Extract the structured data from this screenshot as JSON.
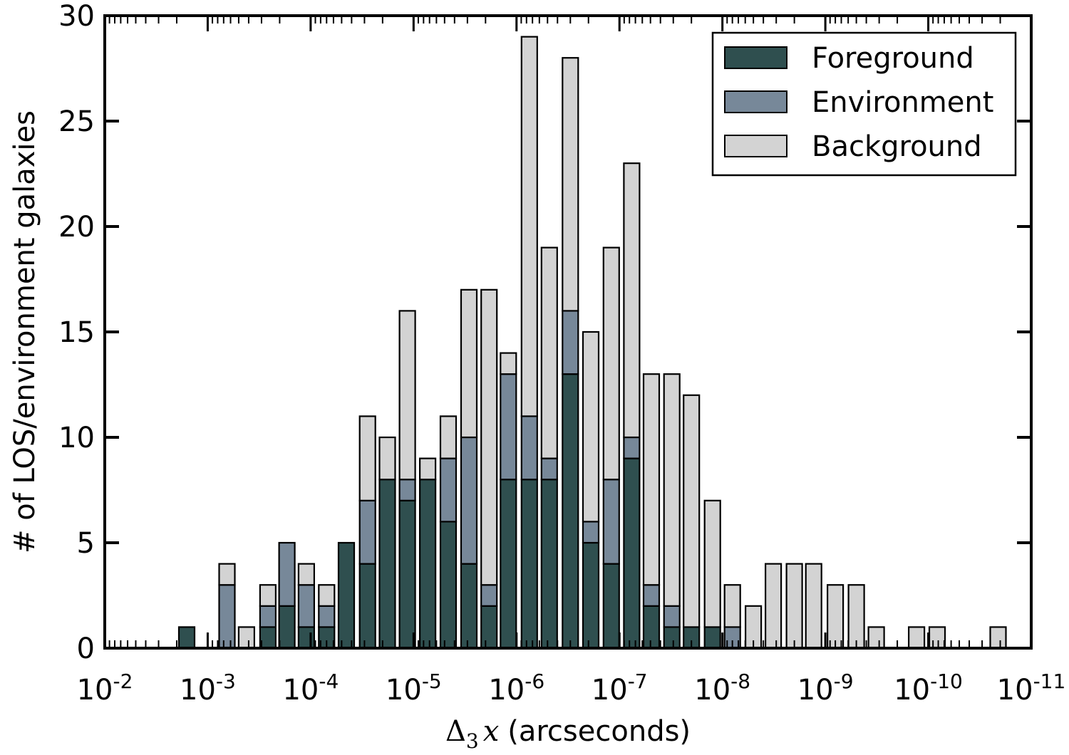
{
  "chart_data": {
    "type": "bar",
    "stacked": true,
    "title": "",
    "xlabel": {
      "prefix": "Δ",
      "subscript": "3",
      "variable": "x",
      "unit": "(arcseconds)"
    },
    "ylabel": "# of LOS/environment galaxies",
    "x_scale": "log (reversed)",
    "xlim": [
      0.01,
      1e-11
    ],
    "ylim": [
      0,
      30
    ],
    "yticks": [
      0,
      5,
      10,
      15,
      20,
      25,
      30
    ],
    "yticklabels": [
      "0",
      "5",
      "10",
      "15",
      "20",
      "25",
      "30"
    ],
    "xticks": [
      {
        "base": "10",
        "exp": "-2",
        "value": 0.01
      },
      {
        "base": "10",
        "exp": "-3",
        "value": 0.001
      },
      {
        "base": "10",
        "exp": "-4",
        "value": 0.0001
      },
      {
        "base": "10",
        "exp": "-5",
        "value": 1e-05
      },
      {
        "base": "10",
        "exp": "-6",
        "value": 1e-06
      },
      {
        "base": "10",
        "exp": "-7",
        "value": 1e-07
      },
      {
        "base": "10",
        "exp": "-8",
        "value": 1e-08
      },
      {
        "base": "10",
        "exp": "-9",
        "value": 1e-09
      },
      {
        "base": "10",
        "exp": "-10",
        "value": 1e-10
      },
      {
        "base": "10",
        "exp": "-11",
        "value": 1e-11
      }
    ],
    "grid": false,
    "legend_position": "top-right",
    "x": [
      0.0016,
      0.00065,
      0.00042,
      0.00026,
      0.00017,
      0.00011,
      7e-05,
      4.5e-05,
      2.8e-05,
      1.8e-05,
      1.15e-05,
      7.3e-06,
      4.6e-06,
      2.9e-06,
      1.85e-06,
      1.2e-06,
      7.5e-07,
      4.8e-07,
      3e-07,
      1.9e-07,
      1.2e-07,
      7.6e-08,
      4.9e-08,
      3.1e-08,
      2e-08,
      1.25e-08,
      8e-09,
      5e-09,
      3.2e-09,
      2e-09,
      1.3e-09,
      8e-10,
      5e-10,
      3.2e-10,
      1.3e-10,
      8.2e-11,
      2.1e-11
    ],
    "series": [
      {
        "name": "Foreground",
        "color": "#2f4f4f",
        "values": [
          1,
          0,
          0,
          1,
          2,
          1,
          1,
          5,
          4,
          8,
          7,
          8,
          6,
          4,
          2,
          8,
          8,
          8,
          13,
          5,
          4,
          9,
          2,
          1,
          1,
          1,
          0,
          0,
          0,
          0,
          0,
          0,
          0,
          0,
          0,
          0,
          0
        ]
      },
      {
        "name": "Environment",
        "color": "#778899",
        "values": [
          0,
          3,
          0,
          1,
          3,
          2,
          1,
          0,
          3,
          0,
          1,
          0,
          3,
          6,
          1,
          5,
          3,
          1,
          3,
          1,
          4,
          1,
          1,
          1,
          0,
          0,
          1,
          0,
          0,
          0,
          0,
          0,
          0,
          0,
          0,
          0,
          0
        ]
      },
      {
        "name": "Background",
        "color": "#d3d3d3",
        "values": [
          0,
          1,
          1,
          1,
          0,
          1,
          1,
          0,
          4,
          2,
          8,
          1,
          2,
          7,
          14,
          1,
          18,
          10,
          12,
          9,
          11,
          13,
          10,
          11,
          11,
          6,
          2,
          2,
          4,
          4,
          4,
          3,
          3,
          1,
          1,
          1,
          1
        ]
      }
    ]
  }
}
